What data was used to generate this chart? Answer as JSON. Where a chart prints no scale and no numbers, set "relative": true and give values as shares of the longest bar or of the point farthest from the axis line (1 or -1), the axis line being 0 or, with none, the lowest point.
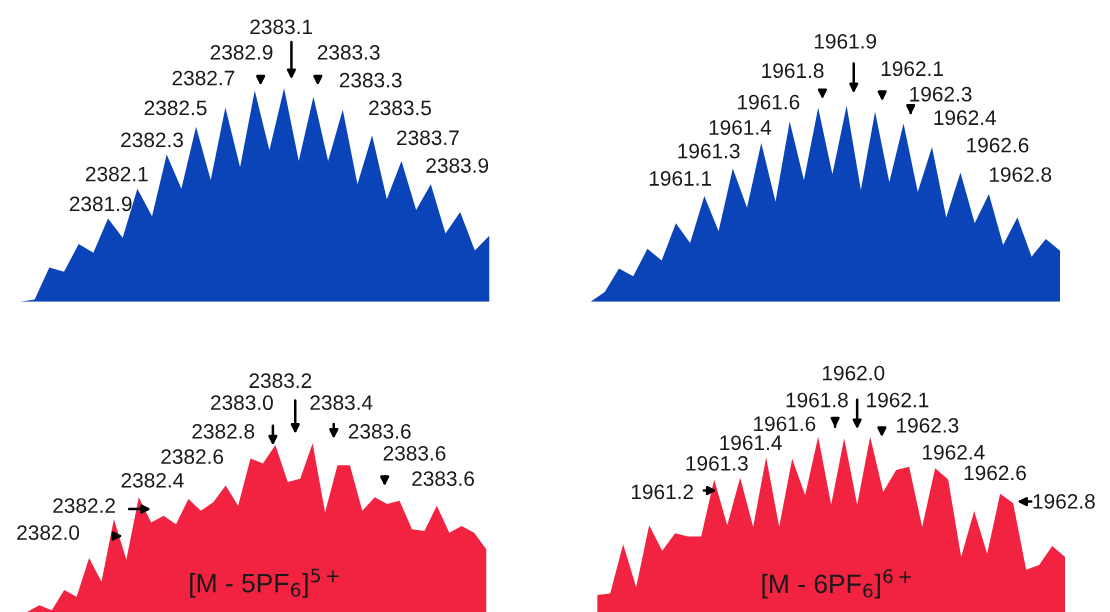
{
  "chart_data": [
    {
      "type": "area",
      "relative": true,
      "color": "#0b44b8",
      "categories": [
        null,
        null,
        null,
        null,
        null,
        null,
        null,
        null,
        null,
        null,
        null,
        null,
        null,
        null,
        null,
        null,
        null,
        null,
        null,
        null,
        null,
        null,
        null,
        null,
        null,
        null,
        null,
        null,
        null,
        null,
        null,
        null,
        null
      ],
      "values": [
        0,
        0.01,
        0.16,
        0.14,
        0.27,
        0.23,
        0.39,
        0.3,
        0.53,
        0.4,
        0.69,
        0.53,
        0.82,
        0.57,
        0.91,
        0.63,
        0.99,
        0.71,
        1.0,
        0.66,
        0.96,
        0.66,
        0.9,
        0.55,
        0.78,
        0.48,
        0.66,
        0.43,
        0.55,
        0.32,
        0.42,
        0.24,
        0.31
      ],
      "annotations": [
        "2381.9",
        "2382.1",
        "2382.3",
        "2382.5",
        "2382.7",
        "2382.9",
        "2383.1",
        "2383.3",
        "2383.3",
        "2383.5",
        "2383.7",
        "2383.9"
      ]
    },
    {
      "type": "area",
      "relative": true,
      "color": "#0b44b8",
      "categories": [
        null,
        null,
        null,
        null,
        null,
        null,
        null,
        null,
        null,
        null,
        null,
        null,
        null,
        null,
        null,
        null,
        null,
        null,
        null,
        null,
        null,
        null,
        null,
        null,
        null,
        null,
        null,
        null,
        null,
        null,
        null,
        null,
        null,
        null
      ],
      "values": [
        0,
        0.05,
        0.17,
        0.13,
        0.27,
        0.21,
        0.4,
        0.3,
        0.54,
        0.36,
        0.68,
        0.48,
        0.81,
        0.51,
        0.92,
        0.62,
        0.99,
        0.65,
        1.0,
        0.57,
        0.97,
        0.61,
        0.91,
        0.56,
        0.79,
        0.43,
        0.66,
        0.4,
        0.55,
        0.29,
        0.43,
        0.23,
        0.32,
        0.26
      ],
      "annotations": [
        "1961.1",
        "1961.3",
        "1961.4",
        "1961.6",
        "1961.8",
        "1961.9",
        "1962.1",
        "1962.3",
        "1962.4",
        "1962.6",
        "1962.8"
      ]
    },
    {
      "type": "area",
      "relative": true,
      "color": "#f22340",
      "categories": [
        null,
        null,
        null,
        null,
        null,
        null,
        null,
        null,
        null,
        null,
        null,
        null,
        null,
        null,
        null,
        null,
        null,
        null,
        null,
        null,
        null,
        null,
        null,
        null,
        null,
        null,
        null,
        null,
        null,
        null,
        null,
        null,
        null,
        null,
        null,
        null,
        null,
        null
      ],
      "values": [
        0,
        0.04,
        0.01,
        0.13,
        0.09,
        0.32,
        0.18,
        0.55,
        0.31,
        0.68,
        0.53,
        0.57,
        0.52,
        0.67,
        0.6,
        0.65,
        0.75,
        0.63,
        0.91,
        0.88,
        0.99,
        0.77,
        0.79,
        1.0,
        0.59,
        0.87,
        0.87,
        0.6,
        0.68,
        0.64,
        0.66,
        0.49,
        0.48,
        0.63,
        0.47,
        0.51,
        0.47,
        0.37
      ],
      "annotations": [
        "2382.0",
        "2382.2",
        "2382.4",
        "2382.6",
        "2382.8",
        "2383.0",
        "2383.2",
        "2383.4",
        "2383.6",
        "2383.6",
        "2383.6",
        "[M - 5PF$_{6}$]$^{5+}$"
      ]
    },
    {
      "type": "area",
      "relative": true,
      "color": "#f22340",
      "categories": [
        null,
        null,
        null,
        null,
        null,
        null,
        null,
        null,
        null,
        null,
        null,
        null,
        null,
        null,
        null,
        null,
        null,
        null,
        null,
        null,
        null,
        null,
        null,
        null,
        null,
        null,
        null,
        null,
        null,
        null,
        null,
        null,
        null,
        null,
        null,
        null,
        null
      ],
      "values": [
        0,
        0.01,
        0.32,
        0.05,
        0.44,
        0.28,
        0.39,
        0.37,
        0.37,
        0.73,
        0.44,
        0.74,
        0.43,
        0.87,
        0.43,
        0.86,
        0.63,
        1.0,
        0.57,
        0.99,
        0.57,
        1.0,
        0.65,
        0.79,
        0.81,
        0.43,
        0.8,
        0.73,
        0.24,
        0.53,
        0.26,
        0.64,
        0.58,
        0.16,
        0.19,
        0.31,
        0.24
      ],
      "annotations": [
        "1961.2",
        "1961.3",
        "1961.4",
        "1961.6",
        "1961.8",
        "1962.0",
        "1962.1",
        "1962.3",
        "1962.4",
        "1962.6",
        "1962.8",
        "[M - 6PF$_{6}$]$^{6+}$"
      ]
    }
  ]
}
